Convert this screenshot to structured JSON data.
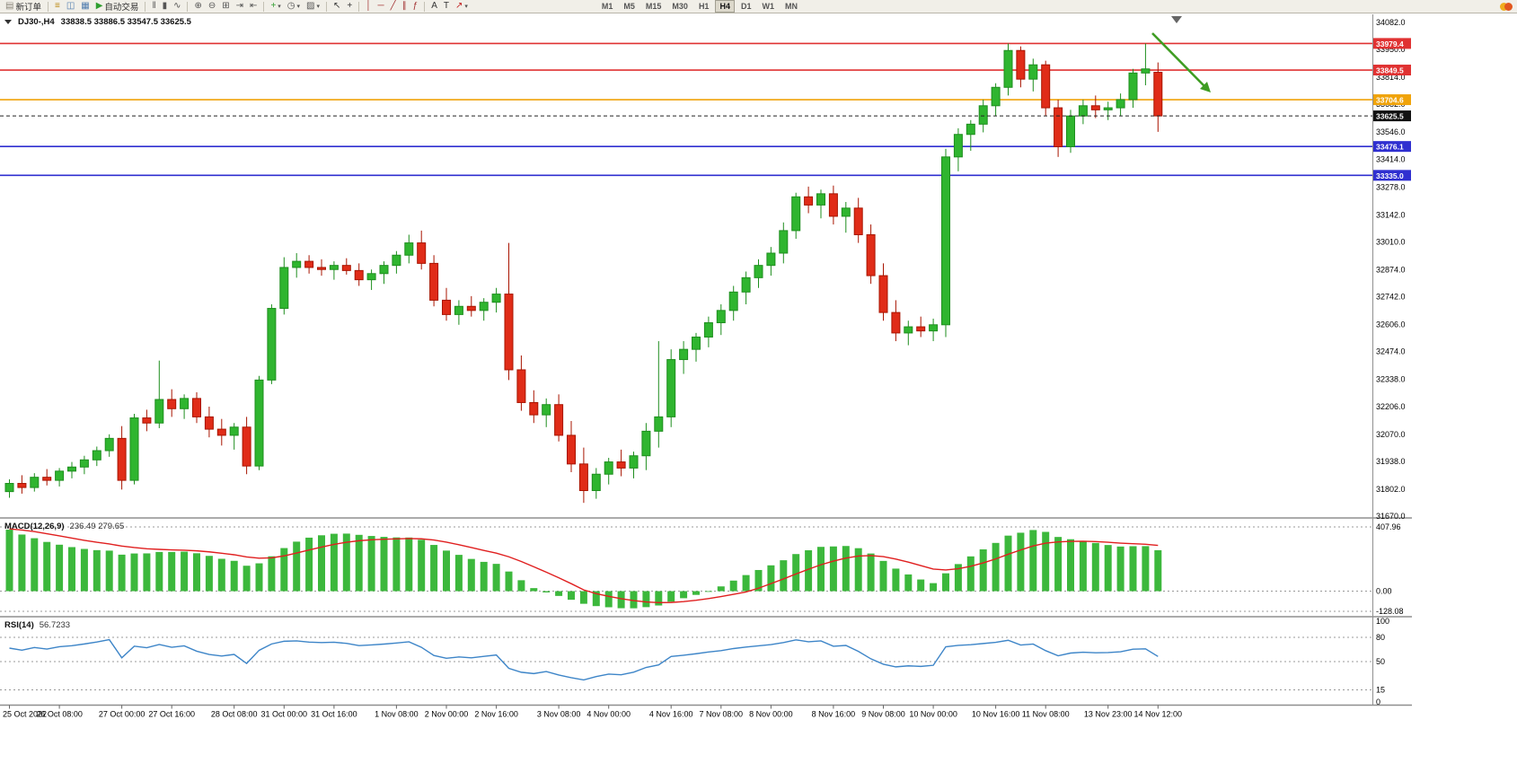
{
  "toolbar": {
    "groups": [
      {
        "items": [
          {
            "name": "new-order-button",
            "icon": "new-order-icon",
            "glyph": "▤",
            "color": "#8a867a",
            "label": "新订单"
          }
        ]
      },
      {
        "sep": true
      },
      {
        "items": [
          {
            "name": "market-watch-button",
            "icon": "market-watch-icon",
            "glyph": "≡",
            "color": "#b8860b"
          },
          {
            "name": "navigator-button",
            "icon": "navigator-icon",
            "glyph": "◫",
            "color": "#4f7cae"
          },
          {
            "name": "terminal-button",
            "icon": "terminal-icon",
            "glyph": "▦",
            "color": "#4f7cae"
          },
          {
            "name": "auto-trading-button",
            "icon": "auto-trading-icon",
            "glyph": "▶",
            "color": "#2f9e2f",
            "label": "自动交易"
          }
        ]
      },
      {
        "sep": true
      },
      {
        "items": [
          {
            "name": "bar-chart-button",
            "icon": "bar-chart-icon",
            "glyph": "‖",
            "color": "#555555"
          },
          {
            "name": "candlestick-chart-button",
            "icon": "candlestick-icon",
            "glyph": "▮",
            "color": "#555555"
          },
          {
            "name": "line-chart-button",
            "icon": "line-chart-icon",
            "glyph": "∿",
            "color": "#555555"
          }
        ]
      },
      {
        "sep": true
      },
      {
        "items": [
          {
            "name": "zoom-in-button",
            "icon": "zoom-in-icon",
            "glyph": "⊕",
            "color": "#555555"
          },
          {
            "name": "zoom-out-button",
            "icon": "zoom-out-icon",
            "glyph": "⊖",
            "color": "#555555"
          },
          {
            "name": "tile-windows-button",
            "icon": "tile-windows-icon",
            "glyph": "⊞",
            "color": "#555555"
          },
          {
            "name": "auto-scroll-button",
            "icon": "auto-scroll-icon",
            "glyph": "⇥",
            "color": "#555555"
          },
          {
            "name": "chart-shift-button",
            "icon": "chart-shift-icon",
            "glyph": "⇤",
            "color": "#555555"
          }
        ]
      },
      {
        "sep": true
      },
      {
        "items": [
          {
            "name": "indicators-button",
            "icon": "indicators-icon",
            "glyph": "+",
            "color": "#2f9e2f",
            "dropdown": true
          },
          {
            "name": "periods-button",
            "icon": "clock-icon",
            "glyph": "◷",
            "color": "#555555",
            "dropdown": true
          },
          {
            "name": "templates-button",
            "icon": "templates-icon",
            "glyph": "▨",
            "color": "#555555",
            "dropdown": true
          }
        ]
      },
      {
        "sep": true
      },
      {
        "items": [
          {
            "name": "cursor-button",
            "icon": "cursor-icon",
            "glyph": "↖",
            "color": "#333333"
          },
          {
            "name": "crosshair-button",
            "icon": "crosshair-icon",
            "glyph": "+",
            "color": "#333333"
          }
        ]
      },
      {
        "sep": true
      },
      {
        "items": [
          {
            "name": "vertical-line-button",
            "icon": "vertical-line-icon",
            "glyph": "│",
            "color": "#a33333"
          },
          {
            "name": "horizontal-line-button",
            "icon": "horizontal-line-icon",
            "glyph": "─",
            "color": "#a33333"
          },
          {
            "name": "trendline-button",
            "icon": "trendline-icon",
            "glyph": "╱",
            "color": "#a33333"
          },
          {
            "name": "channel-button",
            "icon": "channel-icon",
            "glyph": "∥",
            "color": "#a33333"
          },
          {
            "name": "fibonacci-button",
            "icon": "fibonacci-icon",
            "glyph": "ƒ",
            "color": "#a33333"
          }
        ]
      },
      {
        "sep": true
      },
      {
        "items": [
          {
            "name": "text-button",
            "icon": "text-icon",
            "glyph": "A",
            "color": "#333333"
          },
          {
            "name": "label-button",
            "icon": "label-icon",
            "glyph": "T",
            "color": "#333333"
          },
          {
            "name": "arrows-button",
            "icon": "arrow-objects-icon",
            "glyph": "↗",
            "color": "#c22222",
            "dropdown": true
          }
        ]
      }
    ],
    "timeframes": [
      "M1",
      "M5",
      "M15",
      "M30",
      "H1",
      "H4",
      "D1",
      "W1",
      "MN"
    ],
    "active_timeframe": "H4"
  },
  "chart": {
    "symbol_period": "DJ30-,H4",
    "ohlc_text": "33838.5 33886.5 33547.5 33625.5"
  },
  "chart_data": {
    "type": "candlestick",
    "symbol": "DJ30-",
    "period": "H4",
    "y_range": [
      31670,
      34082
    ],
    "y_axis_labels": [
      "34082.0",
      "33950.0",
      "33814.0",
      "33682.0",
      "33546.0",
      "33414.0",
      "33278.0",
      "33142.0",
      "33010.0",
      "32874.0",
      "32742.0",
      "32606.0",
      "32474.0",
      "32338.0",
      "32206.0",
      "32070.0",
      "31938.0",
      "31802.0",
      "31670.0"
    ],
    "x_labels": [
      "25 Oct 2022",
      "26 Oct 08:00",
      "27 Oct 00:00",
      "27 Oct 16:00",
      "28 Oct 08:00",
      "31 Oct 00:00",
      "31 Oct 16:00",
      "1 Nov 08:00",
      "2 Nov 00:00",
      "2 Nov 16:00",
      "3 Nov 08:00",
      "4 Nov 00:00",
      "4 Nov 16:00",
      "7 Nov 08:00",
      "8 Nov 00:00",
      "8 Nov 16:00",
      "9 Nov 08:00",
      "10 Nov 00:00",
      "10 Nov 16:00",
      "11 Nov 08:00",
      "13 Nov 23:00",
      "14 Nov 12:00"
    ],
    "ohlc": [
      [
        31790,
        31850,
        31760,
        31830
      ],
      [
        31830,
        31870,
        31780,
        31810
      ],
      [
        31810,
        31880,
        31790,
        31860
      ],
      [
        31860,
        31900,
        31820,
        31845
      ],
      [
        31845,
        31905,
        31815,
        31890
      ],
      [
        31890,
        31935,
        31855,
        31910
      ],
      [
        31910,
        31965,
        31875,
        31945
      ],
      [
        31945,
        32010,
        31915,
        31990
      ],
      [
        31990,
        32070,
        31960,
        32050
      ],
      [
        32050,
        32110,
        31800,
        31845
      ],
      [
        31845,
        32170,
        31825,
        32150
      ],
      [
        32150,
        32190,
        32085,
        32125
      ],
      [
        32125,
        32430,
        32100,
        32240
      ],
      [
        32240,
        32290,
        32155,
        32195
      ],
      [
        32195,
        32265,
        32145,
        32245
      ],
      [
        32245,
        32275,
        32125,
        32155
      ],
      [
        32155,
        32205,
        32055,
        32095
      ],
      [
        32095,
        32145,
        32015,
        32065
      ],
      [
        32065,
        32125,
        31995,
        32105
      ],
      [
        32105,
        32155,
        31875,
        31915
      ],
      [
        31915,
        32355,
        31895,
        32335
      ],
      [
        32335,
        32705,
        32315,
        32685
      ],
      [
        32685,
        32935,
        32655,
        32885
      ],
      [
        32885,
        32955,
        32835,
        32915
      ],
      [
        32915,
        32945,
        32855,
        32885
      ],
      [
        32885,
        32925,
        32845,
        32875
      ],
      [
        32875,
        32915,
        32825,
        32895
      ],
      [
        32895,
        32930,
        32850,
        32870
      ],
      [
        32870,
        32905,
        32795,
        32825
      ],
      [
        32825,
        32875,
        32775,
        32855
      ],
      [
        32855,
        32915,
        32805,
        32895
      ],
      [
        32895,
        32965,
        32855,
        32945
      ],
      [
        32945,
        33045,
        32905,
        33005
      ],
      [
        33005,
        33065,
        32875,
        32905
      ],
      [
        32905,
        32945,
        32695,
        32725
      ],
      [
        32725,
        32785,
        32625,
        32655
      ],
      [
        32655,
        32725,
        32605,
        32695
      ],
      [
        32695,
        32745,
        32645,
        32675
      ],
      [
        32675,
        32735,
        32625,
        32715
      ],
      [
        32715,
        32785,
        32665,
        32755
      ],
      [
        32755,
        33005,
        32335,
        32385
      ],
      [
        32385,
        32455,
        32185,
        32225
      ],
      [
        32225,
        32285,
        32125,
        32165
      ],
      [
        32165,
        32245,
        32105,
        32215
      ],
      [
        32215,
        32265,
        32035,
        32065
      ],
      [
        32065,
        32135,
        31885,
        31925
      ],
      [
        31925,
        32005,
        31735,
        31795
      ],
      [
        31795,
        31905,
        31755,
        31875
      ],
      [
        31875,
        31955,
        31825,
        31935
      ],
      [
        31935,
        31995,
        31865,
        31905
      ],
      [
        31905,
        31985,
        31855,
        31965
      ],
      [
        31965,
        32125,
        31895,
        32085
      ],
      [
        32085,
        32525,
        32005,
        32155
      ],
      [
        32155,
        32485,
        32105,
        32435
      ],
      [
        32435,
        32525,
        32365,
        32485
      ],
      [
        32485,
        32565,
        32425,
        32545
      ],
      [
        32545,
        32645,
        32495,
        32615
      ],
      [
        32615,
        32705,
        32555,
        32675
      ],
      [
        32675,
        32795,
        32625,
        32765
      ],
      [
        32765,
        32865,
        32705,
        32835
      ],
      [
        32835,
        32925,
        32785,
        32895
      ],
      [
        32895,
        32985,
        32845,
        32955
      ],
      [
        32955,
        33105,
        32905,
        33065
      ],
      [
        33065,
        33250,
        33025,
        33230
      ],
      [
        33230,
        33280,
        33150,
        33190
      ],
      [
        33190,
        33265,
        33125,
        33245
      ],
      [
        33245,
        33285,
        33095,
        33135
      ],
      [
        33135,
        33205,
        33055,
        33175
      ],
      [
        33175,
        33225,
        33005,
        33045
      ],
      [
        33045,
        33095,
        32805,
        32845
      ],
      [
        32845,
        32905,
        32625,
        32665
      ],
      [
        32665,
        32725,
        32525,
        32565
      ],
      [
        32565,
        32625,
        32505,
        32595
      ],
      [
        32595,
        32645,
        32545,
        32575
      ],
      [
        32575,
        32635,
        32525,
        32605
      ],
      [
        32605,
        33465,
        32545,
        33425
      ],
      [
        33425,
        33565,
        33355,
        33535
      ],
      [
        33535,
        33605,
        33455,
        33585
      ],
      [
        33585,
        33705,
        33545,
        33675
      ],
      [
        33675,
        33785,
        33625,
        33765
      ],
      [
        33765,
        33979,
        33725,
        33945
      ],
      [
        33945,
        33965,
        33765,
        33805
      ],
      [
        33805,
        33905,
        33745,
        33875
      ],
      [
        33875,
        33895,
        33625,
        33665
      ],
      [
        33665,
        33705,
        33425,
        33475
      ],
      [
        33475,
        33655,
        33445,
        33625
      ],
      [
        33625,
        33705,
        33585,
        33675
      ],
      [
        33675,
        33725,
        33615,
        33655
      ],
      [
        33655,
        33695,
        33605,
        33665
      ],
      [
        33665,
        33735,
        33625,
        33705
      ],
      [
        33705,
        33855,
        33665,
        33835
      ],
      [
        33835,
        33979.4,
        33775,
        33855
      ],
      [
        33838.5,
        33886.5,
        33547.5,
        33625.5
      ]
    ],
    "horizontal_lines": [
      {
        "price": 33979.4,
        "label": "33979.4",
        "color": "#e03232"
      },
      {
        "price": 33849.5,
        "label": "33849.5",
        "color": "#e03232"
      },
      {
        "price": 33704.6,
        "label": "33704.6",
        "color": "#f0a30a"
      },
      {
        "price": 33476.1,
        "label": "33476.1",
        "color": "#2f2fd0"
      },
      {
        "price": 33335.0,
        "label": "33335.0",
        "color": "#2f2fd0"
      }
    ],
    "current_price": 33625.5,
    "current_price_label": "33625.5",
    "macd": {
      "label": "MACD(12,26,9)",
      "values_text": "236.49 279.65",
      "params": [
        12,
        26,
        9
      ],
      "scale": [
        "407.96",
        "0.00",
        "-128.08"
      ]
    },
    "rsi": {
      "label": "RSI(14)",
      "value_text": "56.7233",
      "period": 14,
      "levels": [
        100,
        80,
        50,
        15,
        0
      ],
      "dashed_levels": [
        80,
        50,
        15
      ]
    },
    "colors": {
      "up": "#1e8e1e",
      "up_fill": "#2fb52f",
      "down": "#a81400",
      "down_fill": "#e02c18",
      "macd_hist": "#3cb83c",
      "macd_signal": "#e01f1f",
      "rsi": "#3d85c8",
      "current": "#222222",
      "arrow": "#3f9d23"
    },
    "annotation_arrow": {
      "from": [
        1283,
        37
      ],
      "to": [
        1348,
        103
      ],
      "color": "#3f9d23"
    }
  },
  "status": {
    "notification_colors": [
      "#f0ad1e",
      "#e2571e"
    ]
  }
}
